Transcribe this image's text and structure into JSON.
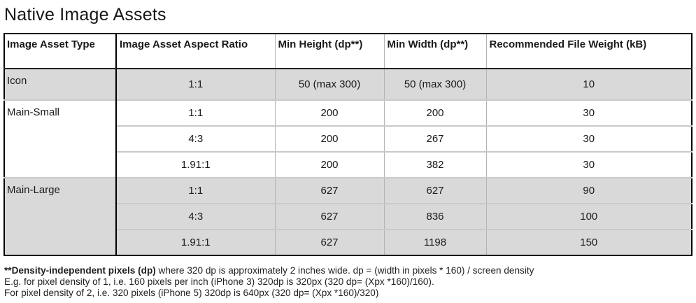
{
  "title": "Native Image Assets",
  "table": {
    "columns": [
      "Image Asset Type",
      "Image Asset Aspect Ratio",
      "Min Height (dp**)",
      "Min Width (dp**)",
      "Recommended File Weight (kB)"
    ],
    "groups": [
      {
        "type": "Icon",
        "shaded": true,
        "rows": [
          [
            "1:1",
            "50 (max 300)",
            "50 (max 300)",
            "10"
          ]
        ]
      },
      {
        "type": "Main-Small",
        "shaded": false,
        "rows": [
          [
            "1:1",
            "200",
            "200",
            "30"
          ],
          [
            "4:3",
            "200",
            "267",
            "30"
          ],
          [
            "1.91:1",
            "200",
            "382",
            "30"
          ]
        ]
      },
      {
        "type": "Main-Large",
        "shaded": true,
        "rows": [
          [
            "1:1",
            "627",
            "627",
            "90"
          ],
          [
            "4:3",
            "627",
            "836",
            "100"
          ],
          [
            "1.91:1",
            "627",
            "1198",
            "150"
          ]
        ]
      }
    ]
  },
  "footnote": {
    "line1_bold": "**Density-independent pixels (dp)",
    "line1_rest": " where 320 dp is approximately 2 inches wide. dp = (width in pixels * 160) / screen density",
    "line2": "E.g. for pixel density of 1, i.e. 160 pixels per inch (iPhone 3) 320dp is 320px (320 dp= (Xpx *160)/160).",
    "line3": "For pixel density of 2, i.e. 320 pixels (iPhone 5) 320dp is 640px (320 dp= (Xpx *160)/320)"
  },
  "colors": {
    "shaded_row": "#d9d9d9",
    "grid_light": "#c9c9c9",
    "divider_dark": "#000000"
  }
}
